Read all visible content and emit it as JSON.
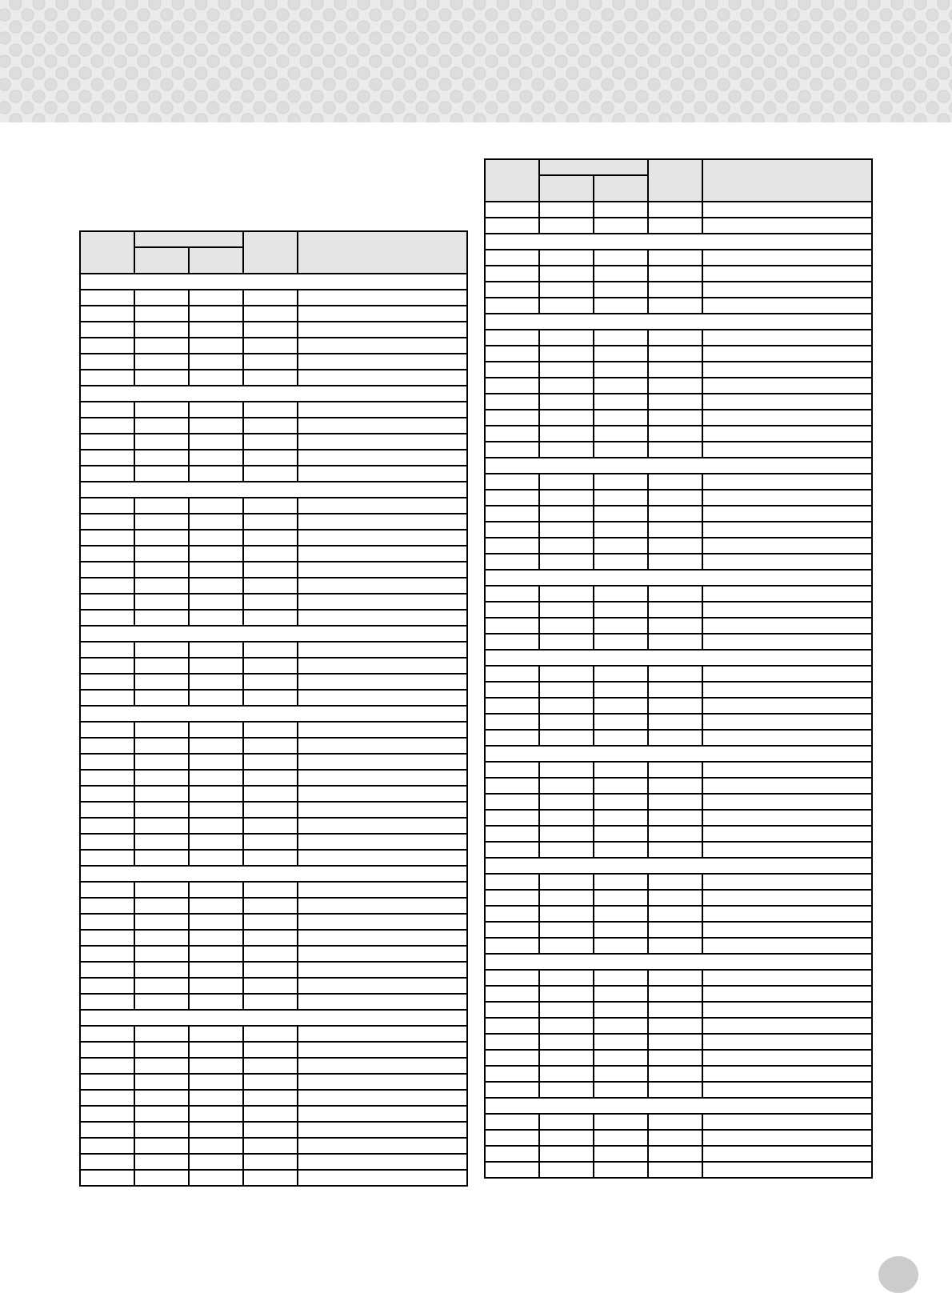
{
  "page_number": "",
  "tables": [
    {
      "id": "table-left",
      "header": {
        "col1": "",
        "group": "",
        "group_sub1": "",
        "group_sub2": "",
        "col4": "",
        "col5": ""
      },
      "sections": [
        {
          "title": "",
          "rows": [
            [
              "",
              "",
              "",
              "",
              ""
            ],
            [
              "",
              "",
              "",
              "",
              ""
            ],
            [
              "",
              "",
              "",
              "",
              ""
            ],
            [
              "",
              "",
              "",
              "",
              ""
            ],
            [
              "",
              "",
              "",
              "",
              ""
            ],
            [
              "",
              "",
              "",
              "",
              ""
            ]
          ]
        },
        {
          "title": "",
          "rows": [
            [
              "",
              "",
              "",
              "",
              ""
            ],
            [
              "",
              "",
              "",
              "",
              ""
            ],
            [
              "",
              "",
              "",
              "",
              ""
            ],
            [
              "",
              "",
              "",
              "",
              ""
            ],
            [
              "",
              "",
              "",
              "",
              ""
            ]
          ]
        },
        {
          "title": "",
          "rows": [
            [
              "",
              "",
              "",
              "",
              ""
            ],
            [
              "",
              "",
              "",
              "",
              ""
            ],
            [
              "",
              "",
              "",
              "",
              ""
            ],
            [
              "",
              "",
              "",
              "",
              ""
            ],
            [
              "",
              "",
              "",
              "",
              ""
            ],
            [
              "",
              "",
              "",
              "",
              ""
            ],
            [
              "",
              "",
              "",
              "",
              ""
            ],
            [
              "",
              "",
              "",
              "",
              ""
            ]
          ]
        },
        {
          "title": "",
          "rows": [
            [
              "",
              "",
              "",
              "",
              ""
            ],
            [
              "",
              "",
              "",
              "",
              ""
            ],
            [
              "",
              "",
              "",
              "",
              ""
            ],
            [
              "",
              "",
              "",
              "",
              ""
            ]
          ]
        },
        {
          "title": "",
          "rows": [
            [
              "",
              "",
              "",
              "",
              ""
            ],
            [
              "",
              "",
              "",
              "",
              ""
            ],
            [
              "",
              "",
              "",
              "",
              ""
            ],
            [
              "",
              "",
              "",
              "",
              ""
            ],
            [
              "",
              "",
              "",
              "",
              ""
            ],
            [
              "",
              "",
              "",
              "",
              ""
            ],
            [
              "",
              "",
              "",
              "",
              ""
            ],
            [
              "",
              "",
              "",
              "",
              ""
            ],
            [
              "",
              "",
              "",
              "",
              ""
            ]
          ]
        },
        {
          "title": "",
          "rows": [
            [
              "",
              "",
              "",
              "",
              ""
            ],
            [
              "",
              "",
              "",
              "",
              ""
            ],
            [
              "",
              "",
              "",
              "",
              ""
            ],
            [
              "",
              "",
              "",
              "",
              ""
            ],
            [
              "",
              "",
              "",
              "",
              ""
            ],
            [
              "",
              "",
              "",
              "",
              ""
            ],
            [
              "",
              "",
              "",
              "",
              ""
            ],
            [
              "",
              "",
              "",
              "",
              ""
            ]
          ]
        },
        {
          "title": "",
          "rows": [
            [
              "",
              "",
              "",
              "",
              ""
            ],
            [
              "",
              "",
              "",
              "",
              ""
            ],
            [
              "",
              "",
              "",
              "",
              ""
            ],
            [
              "",
              "",
              "",
              "",
              ""
            ],
            [
              "",
              "",
              "",
              "",
              ""
            ],
            [
              "",
              "",
              "",
              "",
              ""
            ],
            [
              "",
              "",
              "",
              "",
              ""
            ],
            [
              "",
              "",
              "",
              "",
              ""
            ],
            [
              "",
              "",
              "",
              "",
              ""
            ],
            [
              "",
              "",
              "",
              "",
              ""
            ]
          ]
        }
      ]
    },
    {
      "id": "table-right",
      "header": {
        "col1": "",
        "group": "",
        "group_sub1": "",
        "group_sub2": "",
        "col4": "",
        "col5": ""
      },
      "sections": [
        {
          "title": null,
          "rows": [
            [
              "",
              "",
              "",
              "",
              ""
            ],
            [
              "",
              "",
              "",
              "",
              ""
            ]
          ]
        },
        {
          "title": "",
          "rows": [
            [
              "",
              "",
              "",
              "",
              ""
            ],
            [
              "",
              "",
              "",
              "",
              ""
            ],
            [
              "",
              "",
              "",
              "",
              ""
            ],
            [
              "",
              "",
              "",
              "",
              ""
            ]
          ]
        },
        {
          "title": "",
          "rows": [
            [
              "",
              "",
              "",
              "",
              ""
            ],
            [
              "",
              "",
              "",
              "",
              ""
            ],
            [
              "",
              "",
              "",
              "",
              ""
            ],
            [
              "",
              "",
              "",
              "",
              ""
            ],
            [
              "",
              "",
              "",
              "",
              ""
            ],
            [
              "",
              "",
              "",
              "",
              ""
            ],
            [
              "",
              "",
              "",
              "",
              ""
            ],
            [
              "",
              "",
              "",
              "",
              ""
            ]
          ]
        },
        {
          "title": "",
          "rows": [
            [
              "",
              "",
              "",
              "",
              ""
            ],
            [
              "",
              "",
              "",
              "",
              ""
            ],
            [
              "",
              "",
              "",
              "",
              ""
            ],
            [
              "",
              "",
              "",
              "",
              ""
            ],
            [
              "",
              "",
              "",
              "",
              ""
            ],
            [
              "",
              "",
              "",
              "",
              ""
            ]
          ]
        },
        {
          "title": "",
          "rows": [
            [
              "",
              "",
              "",
              "",
              ""
            ],
            [
              "",
              "",
              "",
              "",
              ""
            ],
            [
              "",
              "",
              "",
              "",
              ""
            ],
            [
              "",
              "",
              "",
              "",
              ""
            ]
          ]
        },
        {
          "title": "",
          "rows": [
            [
              "",
              "",
              "",
              "",
              ""
            ],
            [
              "",
              "",
              "",
              "",
              ""
            ],
            [
              "",
              "",
              "",
              "",
              ""
            ],
            [
              "",
              "",
              "",
              "",
              ""
            ],
            [
              "",
              "",
              "",
              "",
              ""
            ]
          ]
        },
        {
          "title": "",
          "rows": [
            [
              "",
              "",
              "",
              "",
              ""
            ],
            [
              "",
              "",
              "",
              "",
              ""
            ],
            [
              "",
              "",
              "",
              "",
              ""
            ],
            [
              "",
              "",
              "",
              "",
              ""
            ],
            [
              "",
              "",
              "",
              "",
              ""
            ],
            [
              "",
              "",
              "",
              "",
              ""
            ]
          ]
        },
        {
          "title": "",
          "rows": [
            [
              "",
              "",
              "",
              "",
              ""
            ],
            [
              "",
              "",
              "",
              "",
              ""
            ],
            [
              "",
              "",
              "",
              "",
              ""
            ],
            [
              "",
              "",
              "",
              "",
              ""
            ],
            [
              "",
              "",
              "",
              "",
              ""
            ]
          ]
        },
        {
          "title": "",
          "rows": [
            [
              "",
              "",
              "",
              "",
              ""
            ],
            [
              "",
              "",
              "",
              "",
              ""
            ],
            [
              "",
              "",
              "",
              "",
              ""
            ],
            [
              "",
              "",
              "",
              "",
              ""
            ],
            [
              "",
              "",
              "",
              "",
              ""
            ],
            [
              "",
              "",
              "",
              "",
              ""
            ],
            [
              "",
              "",
              "",
              "",
              ""
            ],
            [
              "",
              "",
              "",
              "",
              ""
            ]
          ]
        },
        {
          "title": "",
          "rows": [
            [
              "",
              "",
              "",
              "",
              ""
            ],
            [
              "",
              "",
              "",
              "",
              ""
            ],
            [
              "",
              "",
              "",
              "",
              ""
            ],
            [
              "",
              "",
              "",
              "",
              ""
            ]
          ]
        }
      ]
    }
  ]
}
